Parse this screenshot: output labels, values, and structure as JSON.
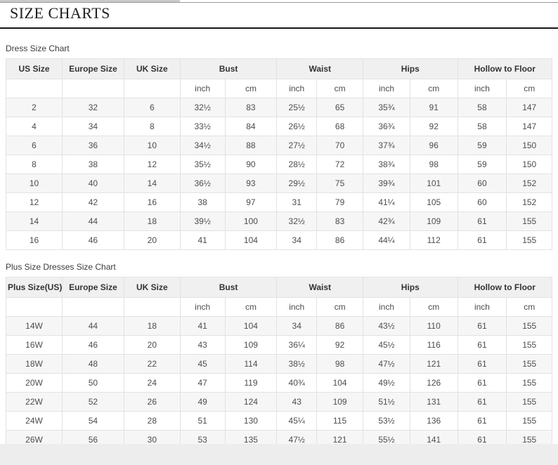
{
  "page": {
    "title": "SIZE CHARTS"
  },
  "colors": {
    "header_bg": "#f0f0f0",
    "stripe": "#f6f6f6",
    "border": "#e2e2e2",
    "title_rule": "#161616"
  },
  "tables": [
    {
      "caption": "Dress Size Chart",
      "size_headers": [
        "US Size",
        "Europe Size",
        "UK Size"
      ],
      "measure_headers": [
        "Bust",
        "Waist",
        "Hips",
        "Hollow to Floor"
      ],
      "units": [
        "inch",
        "cm"
      ],
      "rows": [
        [
          "2",
          "32",
          "6",
          "32½",
          "83",
          "25½",
          "65",
          "35¾",
          "91",
          "58",
          "147"
        ],
        [
          "4",
          "34",
          "8",
          "33½",
          "84",
          "26½",
          "68",
          "36¾",
          "92",
          "58",
          "147"
        ],
        [
          "6",
          "36",
          "10",
          "34½",
          "88",
          "27½",
          "70",
          "37¾",
          "96",
          "59",
          "150"
        ],
        [
          "8",
          "38",
          "12",
          "35½",
          "90",
          "28½",
          "72",
          "38¾",
          "98",
          "59",
          "150"
        ],
        [
          "10",
          "40",
          "14",
          "36½",
          "93",
          "29½",
          "75",
          "39¾",
          "101",
          "60",
          "152"
        ],
        [
          "12",
          "42",
          "16",
          "38",
          "97",
          "31",
          "79",
          "41¼",
          "105",
          "60",
          "152"
        ],
        [
          "14",
          "44",
          "18",
          "39½",
          "100",
          "32½",
          "83",
          "42¾",
          "109",
          "61",
          "155"
        ],
        [
          "16",
          "46",
          "20",
          "41",
          "104",
          "34",
          "86",
          "44¼",
          "112",
          "61",
          "155"
        ]
      ]
    },
    {
      "caption": "Plus Size Dresses Size Chart",
      "size_headers": [
        "Plus Size(US)",
        "Europe Size",
        "UK Size"
      ],
      "measure_headers": [
        "Bust",
        "Waist",
        "Hips",
        "Hollow to Floor"
      ],
      "units": [
        "inch",
        "cm"
      ],
      "rows": [
        [
          "14W",
          "44",
          "18",
          "41",
          "104",
          "34",
          "86",
          "43½",
          "110",
          "61",
          "155"
        ],
        [
          "16W",
          "46",
          "20",
          "43",
          "109",
          "36¼",
          "92",
          "45½",
          "116",
          "61",
          "155"
        ],
        [
          "18W",
          "48",
          "22",
          "45",
          "114",
          "38½",
          "98",
          "47½",
          "121",
          "61",
          "155"
        ],
        [
          "20W",
          "50",
          "24",
          "47",
          "119",
          "40¾",
          "104",
          "49½",
          "126",
          "61",
          "155"
        ],
        [
          "22W",
          "52",
          "26",
          "49",
          "124",
          "43",
          "109",
          "51½",
          "131",
          "61",
          "155"
        ],
        [
          "24W",
          "54",
          "28",
          "51",
          "130",
          "45¼",
          "115",
          "53½",
          "136",
          "61",
          "155"
        ],
        [
          "26W",
          "56",
          "30",
          "53",
          "135",
          "47½",
          "121",
          "55½",
          "141",
          "61",
          "155"
        ]
      ]
    }
  ]
}
